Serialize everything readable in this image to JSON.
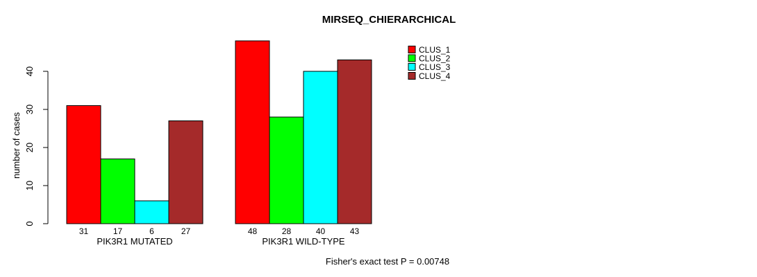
{
  "chart_data": {
    "type": "bar",
    "title": "MIRSEQ_CHIERARCHICAL",
    "xlabel": "",
    "ylabel": "number of cases",
    "ylim": [
      0,
      48
    ],
    "yticks": [
      0,
      10,
      20,
      30,
      40
    ],
    "grid": false,
    "categories": [
      "PIK3R1 MUTATED",
      "PIK3R1 WILD-TYPE"
    ],
    "series": [
      {
        "name": "CLUS_1",
        "color": "#ff0000",
        "values": [
          31,
          48
        ]
      },
      {
        "name": "CLUS_2",
        "color": "#00ff00",
        "values": [
          17,
          28
        ]
      },
      {
        "name": "CLUS_3",
        "color": "#00ffff",
        "values": [
          6,
          40
        ]
      },
      {
        "name": "CLUS_4",
        "color": "#a52a2a",
        "values": [
          27,
          43
        ]
      }
    ],
    "bar_value_labels_shown": true,
    "bar_border_color": "#000000",
    "legend_position": "top-right",
    "annotation": "Fisher's exact test P = 0.00748",
    "text_color": "#000000",
    "background_color": "#ffffff"
  }
}
